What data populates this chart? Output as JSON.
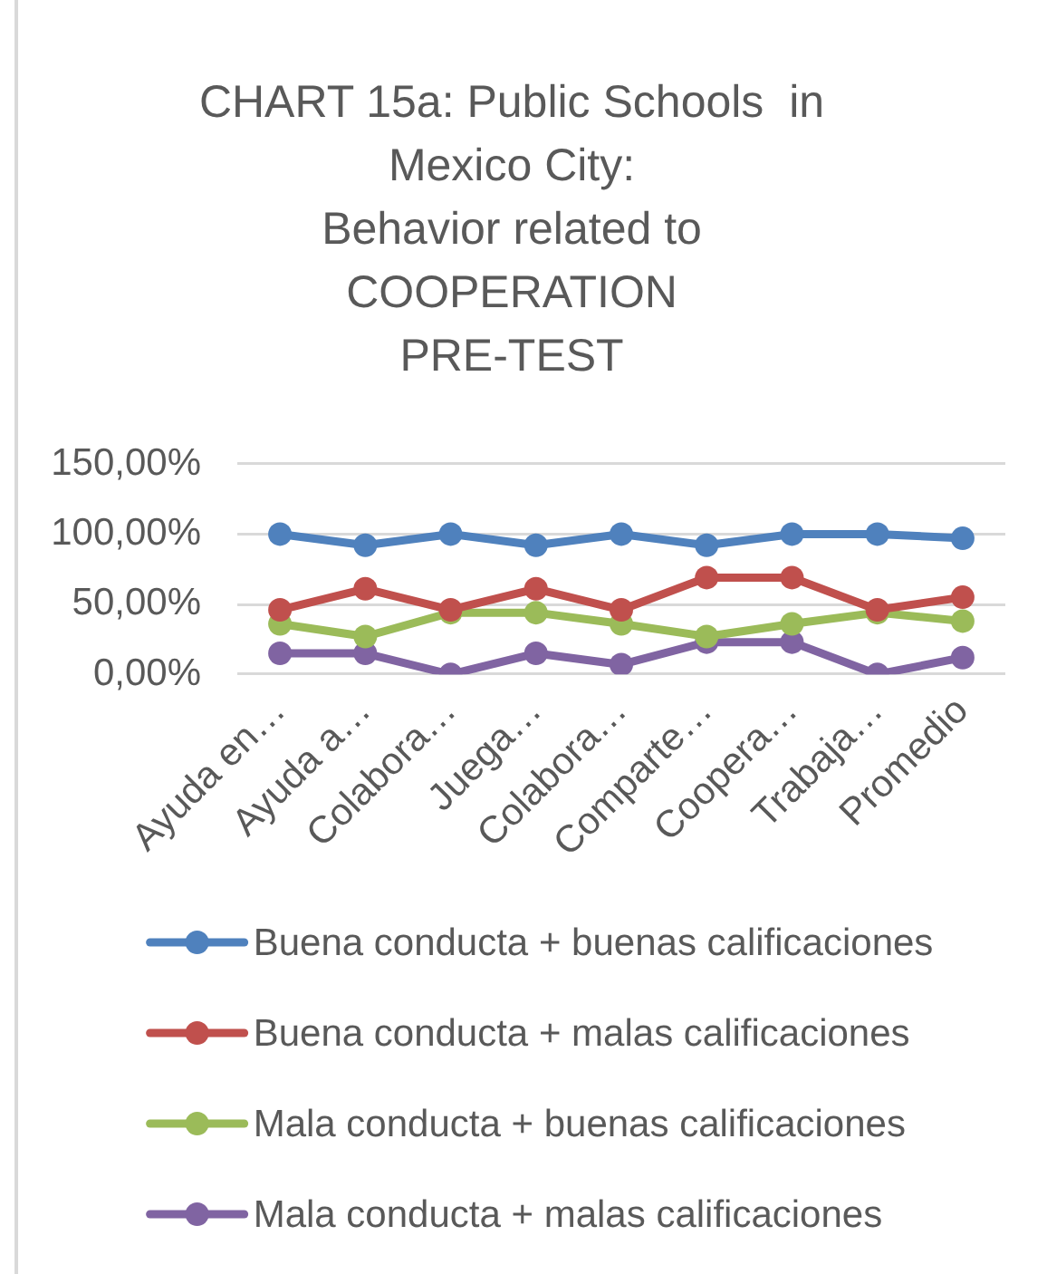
{
  "chart_data": {
    "type": "line",
    "title": "CHART 15a: Public Schools  in\nMexico City:\nBehavior related to\nCOOPERATION\nPRE-TEST",
    "categories": [
      "Ayuda en…",
      "Ayuda a…",
      "Colabora…",
      "Juega…",
      "Colabora…",
      "Comparte…",
      "Coopera…",
      "Trabaja…",
      "Promedio"
    ],
    "series": [
      {
        "name": "Buena conducta + buenas calificaciones",
        "color": "#4f81bd",
        "values": [
          100,
          92,
          100,
          92,
          100,
          92,
          100,
          100,
          97
        ]
      },
      {
        "name": "Buena conducta + malas calificaciones",
        "color": "#c0504d",
        "values": [
          46,
          61,
          46,
          61,
          46,
          69,
          69,
          46,
          55
        ]
      },
      {
        "name": "Mala conducta + buenas calificaciones",
        "color": "#9bbb59",
        "values": [
          36,
          27,
          44,
          44,
          36,
          27,
          36,
          44,
          38
        ]
      },
      {
        "name": "Mala conducta + malas calificaciones",
        "color": "#8064a2",
        "values": [
          15,
          15,
          0,
          15,
          7,
          23,
          23,
          0,
          12
        ]
      }
    ],
    "ylim": [
      0,
      150
    ],
    "yticks": [
      {
        "value": 0,
        "label": "0,00%"
      },
      {
        "value": 50,
        "label": "50,00%"
      },
      {
        "value": 100,
        "label": "100,00%"
      },
      {
        "value": 150,
        "label": "150,00%"
      }
    ],
    "grid": "y",
    "legend": "bottom",
    "marker": "circle",
    "line_style": "solid"
  }
}
